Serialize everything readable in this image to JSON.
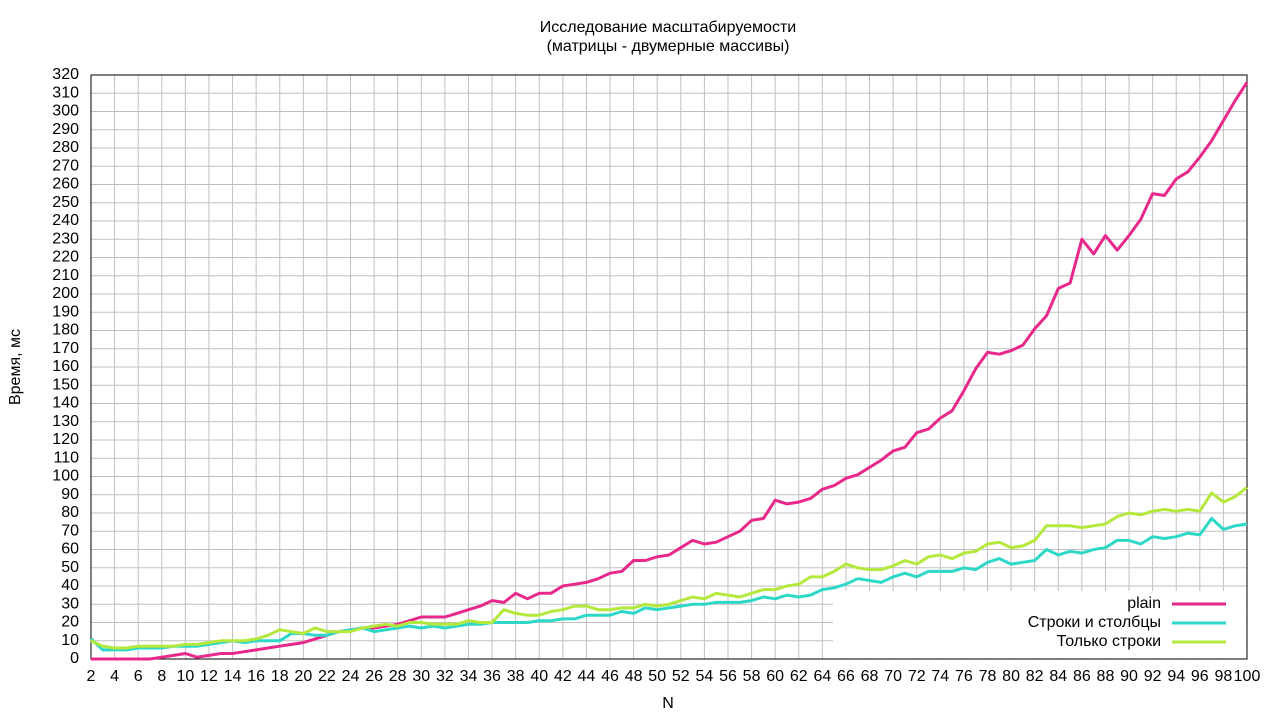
{
  "chart_data": {
    "type": "line",
    "title": "Исследование масштабируемости",
    "subtitle": "(матрицы - двумерные массивы)",
    "x_label": "N",
    "y_label": "Время, мс",
    "x": [
      2,
      3,
      4,
      5,
      6,
      7,
      8,
      9,
      10,
      11,
      12,
      13,
      14,
      15,
      16,
      17,
      18,
      19,
      20,
      21,
      22,
      23,
      24,
      25,
      26,
      27,
      28,
      29,
      30,
      31,
      32,
      33,
      34,
      35,
      36,
      37,
      38,
      39,
      40,
      41,
      42,
      43,
      44,
      45,
      46,
      47,
      48,
      49,
      50,
      51,
      52,
      53,
      54,
      55,
      56,
      57,
      58,
      59,
      60,
      61,
      62,
      63,
      64,
      65,
      66,
      67,
      68,
      69,
      70,
      71,
      72,
      73,
      74,
      75,
      76,
      77,
      78,
      79,
      80,
      81,
      82,
      83,
      84,
      85,
      86,
      87,
      88,
      89,
      90,
      91,
      92,
      93,
      94,
      95,
      96,
      97,
      98,
      99,
      100
    ],
    "series": [
      {
        "name": "plain",
        "color": "#e8288a",
        "values": [
          0,
          0,
          0,
          0,
          0,
          0,
          1,
          2,
          3,
          1,
          2,
          3,
          3,
          4,
          5,
          6,
          7,
          8,
          9,
          11,
          13,
          15,
          16,
          17,
          17,
          18,
          19,
          21,
          23,
          23,
          23,
          25,
          27,
          29,
          32,
          31,
          36,
          33,
          36,
          36,
          40,
          41,
          42,
          44,
          47,
          48,
          54,
          54,
          56,
          57,
          61,
          65,
          63,
          64,
          67,
          70,
          76,
          77,
          87,
          85,
          86,
          88,
          93,
          95,
          99,
          101,
          105,
          109,
          114,
          116,
          124,
          126,
          132,
          136,
          147,
          159,
          168,
          167,
          169,
          172,
          181,
          188,
          203,
          206,
          230,
          222,
          232,
          224,
          232,
          241,
          255,
          254,
          263,
          267,
          275,
          284,
          295,
          306,
          316
        ]
      },
      {
        "name": "Строки и столбцы",
        "color": "#2ed8c8",
        "values": [
          11,
          5,
          5,
          5,
          6,
          6,
          6,
          7,
          7,
          7,
          8,
          9,
          10,
          9,
          10,
          10,
          10,
          14,
          14,
          13,
          13,
          15,
          16,
          17,
          15,
          16,
          17,
          18,
          17,
          18,
          17,
          18,
          19,
          19,
          20,
          20,
          20,
          20,
          21,
          21,
          22,
          22,
          24,
          24,
          24,
          26,
          25,
          28,
          27,
          28,
          29,
          30,
          30,
          31,
          31,
          31,
          32,
          34,
          33,
          35,
          34,
          35,
          38,
          39,
          41,
          44,
          43,
          42,
          45,
          47,
          45,
          48,
          48,
          48,
          50,
          49,
          53,
          55,
          52,
          53,
          54,
          60,
          57,
          59,
          58,
          60,
          61,
          65,
          65,
          63,
          67,
          66,
          67,
          69,
          68,
          77,
          71,
          73,
          74
        ]
      },
      {
        "name": "Только строки",
        "color": "#b4e83c",
        "values": [
          10,
          7,
          6,
          6,
          7,
          7,
          7,
          7,
          8,
          8,
          9,
          10,
          10,
          10,
          11,
          13,
          16,
          15,
          14,
          17,
          15,
          15,
          15,
          17,
          18,
          19,
          18,
          20,
          20,
          19,
          19,
          19,
          21,
          20,
          20,
          27,
          25,
          24,
          24,
          26,
          27,
          29,
          29,
          27,
          27,
          28,
          28,
          30,
          29,
          30,
          32,
          34,
          33,
          36,
          35,
          34,
          36,
          38,
          38,
          40,
          41,
          45,
          45,
          48,
          52,
          50,
          49,
          49,
          51,
          54,
          52,
          56,
          57,
          55,
          58,
          59,
          63,
          64,
          61,
          62,
          65,
          73,
          73,
          73,
          72,
          73,
          74,
          78,
          80,
          79,
          81,
          82,
          81,
          82,
          81,
          91,
          86,
          89,
          94
        ]
      }
    ],
    "xlim": [
      2,
      100
    ],
    "xticks": [
      2,
      4,
      6,
      8,
      10,
      12,
      14,
      16,
      18,
      20,
      22,
      24,
      26,
      28,
      30,
      32,
      34,
      36,
      38,
      40,
      42,
      44,
      46,
      48,
      50,
      52,
      54,
      56,
      58,
      60,
      62,
      64,
      66,
      68,
      70,
      72,
      74,
      76,
      78,
      80,
      82,
      84,
      86,
      88,
      90,
      92,
      94,
      96,
      98,
      100
    ],
    "ylim": [
      0,
      320
    ],
    "yticks": [
      0,
      10,
      20,
      30,
      40,
      50,
      60,
      70,
      80,
      90,
      100,
      110,
      120,
      130,
      140,
      150,
      160,
      170,
      180,
      190,
      200,
      210,
      220,
      230,
      240,
      250,
      260,
      270,
      280,
      290,
      300,
      310,
      320
    ],
    "grid": true,
    "legend": "bottom-right"
  }
}
